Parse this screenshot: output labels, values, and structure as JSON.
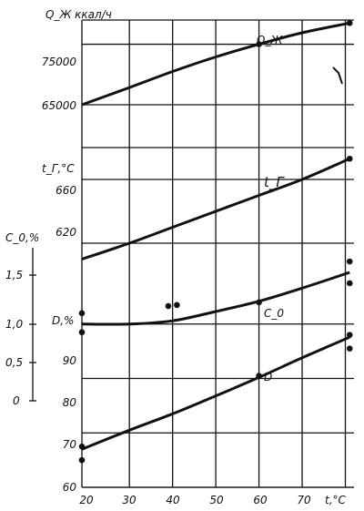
{
  "chart_data": {
    "type": "line",
    "grid": true,
    "x_axis": {
      "label": "t,°C",
      "ticks": [
        "20",
        "30",
        "40",
        "50",
        "60",
        "70"
      ],
      "range": [
        19,
        82
      ],
      "grid_values": [
        19,
        30,
        40,
        50,
        60,
        70,
        80
      ]
    },
    "panels": [
      {
        "id": "q",
        "ylabel": "Q_Ж ккал/ч",
        "yticks": [
          {
            "value": 65000,
            "label": "65000"
          },
          {
            "value": 75000,
            "label": "75000"
          }
        ],
        "yrange": [
          65000,
          79000
        ],
        "series": [
          {
            "name": "Q_Ж",
            "curve": [
              [
                19,
                65000
              ],
              [
                30,
                67850
              ],
              [
                40,
                70500
              ],
              [
                50,
                72900
              ],
              [
                60,
                75000
              ],
              [
                70,
                76900
              ],
              [
                81,
                78500
              ]
            ],
            "points": [
              [
                60,
                75000
              ],
              [
                81,
                78500
              ]
            ]
          }
        ]
      },
      {
        "id": "t",
        "ylabel": "t_Г,°C",
        "yticks": [
          {
            "value": 620,
            "label": "620"
          },
          {
            "value": 660,
            "label": "660"
          }
        ],
        "yrange": [
          600,
          680
        ],
        "series": [
          {
            "name": "t_Г",
            "curve": [
              [
                19,
                610
              ],
              [
                30,
                620
              ],
              [
                40,
                630
              ],
              [
                50,
                640
              ],
              [
                60,
                650
              ],
              [
                70,
                660
              ],
              [
                81,
                673
              ]
            ],
            "points": [
              [
                81,
                673
              ]
            ]
          }
        ]
      },
      {
        "id": "d",
        "ylabel": "D,%",
        "yticks": [
          {
            "value": 60,
            "label": "60"
          },
          {
            "value": 70,
            "label": "70"
          },
          {
            "value": 80,
            "label": "80"
          },
          {
            "value": 90,
            "label": "90"
          }
        ],
        "yrange": [
          60,
          99
        ],
        "series": [
          {
            "name": "D",
            "curve": [
              [
                19,
                67
              ],
              [
                30,
                70.5
              ],
              [
                40,
                73.5
              ],
              [
                50,
                76.8
              ],
              [
                60,
                80.2
              ],
              [
                70,
                83.8
              ],
              [
                81,
                87.6
              ]
            ],
            "points": [
              [
                19,
                67.5
              ],
              [
                19,
                65
              ],
              [
                60,
                80.5
              ],
              [
                81,
                88
              ],
              [
                81,
                85.5
              ]
            ]
          },
          {
            "name": "C_0",
            "curve": [
              [
                19,
                90
              ],
              [
                30,
                90
              ],
              [
                40,
                90.6
              ],
              [
                50,
                92.3
              ],
              [
                60,
                94.2
              ],
              [
                70,
                96.6
              ],
              [
                81,
                99.5
              ]
            ],
            "points": [
              [
                19,
                92
              ],
              [
                19,
                88.5
              ],
              [
                39,
                93.3
              ],
              [
                41,
                93.5
              ],
              [
                60,
                94
              ],
              [
                81,
                101.5
              ],
              [
                81,
                97.5
              ]
            ]
          }
        ]
      }
    ],
    "c0_axis": {
      "label": "C_0,%",
      "ticks": [
        {
          "value": 0,
          "label": "0"
        },
        {
          "value": 0.5,
          "label": "0,5"
        },
        {
          "value": 1.0,
          "label": "1,0"
        },
        {
          "value": 1.5,
          "label": "1,5"
        }
      ]
    }
  }
}
